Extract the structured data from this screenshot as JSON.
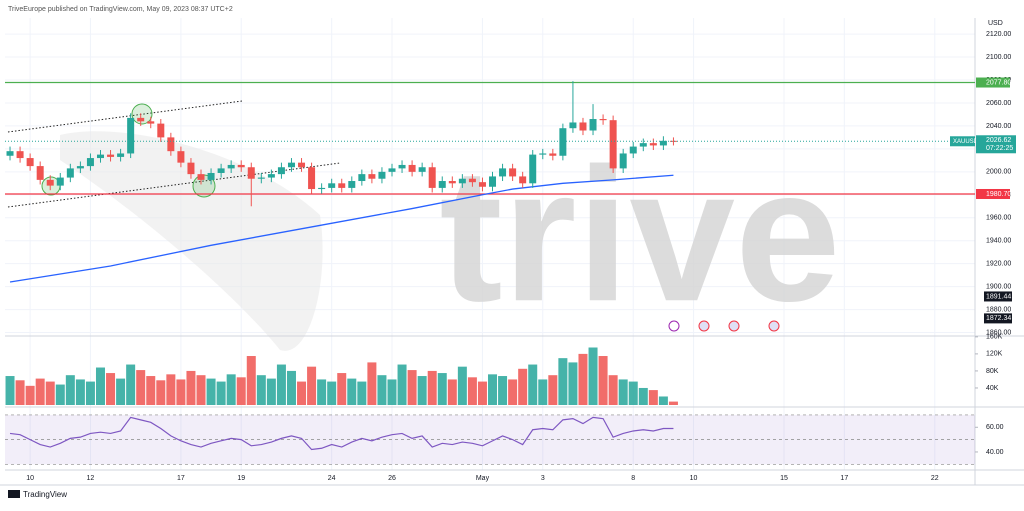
{
  "header": "TriveEurope published on TradingView.com, May 09, 2023 08:37 UTC+2",
  "footer": "TradingView",
  "watermark": "trive",
  "chart_data": {
    "type": "candlestick",
    "currency": "USD",
    "xlim": [
      -0.5,
      96
    ],
    "xticks": [
      {
        "value": 2,
        "label": "10"
      },
      {
        "value": 8,
        "label": "12"
      },
      {
        "value": 17,
        "label": "17"
      },
      {
        "value": 23,
        "label": "19"
      },
      {
        "value": 32,
        "label": "24"
      },
      {
        "value": 38,
        "label": "26"
      },
      {
        "value": 47,
        "label": "May"
      },
      {
        "value": 53,
        "label": "3"
      },
      {
        "value": 62,
        "label": "8"
      },
      {
        "value": 68,
        "label": "10"
      },
      {
        "value": 77,
        "label": "15"
      },
      {
        "value": 83,
        "label": "17"
      },
      {
        "value": 92,
        "label": "22"
      }
    ],
    "up_color": "#26a69a",
    "down_color": "#ef5350",
    "open": [
      2014,
      2018,
      2012,
      2005,
      1993,
      1988,
      1995,
      2003,
      2005,
      2012,
      2015,
      2013,
      2016,
      2047,
      2044,
      2042,
      2030,
      2018,
      2008,
      1998,
      1993,
      1999,
      2003,
      2006,
      2004,
      1994,
      1995,
      1998,
      2004,
      2008,
      2004,
      1985,
      1986,
      1990,
      1986,
      1992,
      1998,
      1994,
      2000,
      2003,
      2006,
      2000,
      2004,
      1986,
      1992,
      1990,
      1994,
      1991,
      1987,
      1996,
      2003,
      1996,
      1990,
      2015,
      2016,
      2014,
      2038,
      2043,
      2036,
      2046,
      2045,
      2003,
      2016,
      2022,
      2025,
      2023,
      2027
    ],
    "high": [
      2022,
      2022,
      2016,
      2009,
      1997,
      1999,
      2007,
      2009,
      2016,
      2019,
      2019,
      2020,
      2051,
      2051,
      2048,
      2046,
      2034,
      2022,
      2012,
      2002,
      2003,
      2007,
      2010,
      2010,
      2008,
      1999,
      2002,
      2008,
      2012,
      2012,
      2008,
      1990,
      1994,
      1994,
      1996,
      2002,
      2002,
      2004,
      2007,
      2010,
      2010,
      2008,
      2008,
      1996,
      1996,
      1998,
      1998,
      1995,
      2000,
      2007,
      2007,
      2000,
      2019,
      2020,
      2020,
      2042,
      2079,
      2047,
      2059,
      2050,
      2049,
      2020,
      2026,
      2029,
      2029,
      2031,
      2030
    ],
    "low": [
      2010,
      2008,
      2001,
      1989,
      1984,
      1984,
      1991,
      1999,
      2001,
      2008,
      2009,
      2009,
      2012,
      2040,
      2038,
      2026,
      2014,
      2004,
      1994,
      1989,
      1989,
      1995,
      1999,
      2000,
      1970,
      1990,
      1991,
      1994,
      2000,
      2000,
      1981,
      1981,
      1982,
      1982,
      1982,
      1988,
      1990,
      1990,
      1996,
      1999,
      1996,
      1996,
      1982,
      1982,
      1986,
      1986,
      1987,
      1983,
      1983,
      1992,
      1992,
      1986,
      1986,
      2011,
      2010,
      2010,
      2034,
      2032,
      2032,
      2041,
      1999,
      1999,
      2012,
      2018,
      2019,
      2019,
      2023
    ],
    "close": [
      2018,
      2012,
      2005,
      1993,
      1988,
      1995,
      2003,
      2005,
      2012,
      2015,
      2013,
      2016,
      2047,
      2044,
      2042,
      2030,
      2018,
      2008,
      1998,
      1993,
      1999,
      2003,
      2006,
      2004,
      1994,
      1995,
      1998,
      2004,
      2008,
      2004,
      1985,
      1986,
      1990,
      1986,
      1992,
      1998,
      1994,
      2000,
      2003,
      2006,
      2000,
      2004,
      1986,
      1992,
      1990,
      1994,
      1991,
      1987,
      1996,
      2003,
      1996,
      1990,
      2015,
      2016,
      2014,
      2038,
      2043,
      2036,
      2046,
      2045,
      2003,
      2016,
      2022,
      2025,
      2023,
      2027,
      2026.62
    ],
    "ylim": [
      1857,
      2134
    ],
    "yticks": [
      {
        "value": 1860,
        "label": "1860.00"
      },
      {
        "value": 1880,
        "label": "1880.00"
      },
      {
        "value": 1900,
        "label": "1900.00"
      },
      {
        "value": 1920,
        "label": "1920.00"
      },
      {
        "value": 1940,
        "label": "1940.00"
      },
      {
        "value": 1960,
        "label": "1960.00"
      },
      {
        "value": 1980,
        "label": "1980.00"
      },
      {
        "value": 2000,
        "label": "2000.00"
      },
      {
        "value": 2020,
        "label": "2020.00"
      },
      {
        "value": 2040,
        "label": "2040.00"
      },
      {
        "value": 2060,
        "label": "2060.00"
      },
      {
        "value": 2080,
        "label": "2080.00"
      },
      {
        "value": 2100,
        "label": "2100.00"
      },
      {
        "value": 2120,
        "label": "2120.00"
      }
    ],
    "grid": true,
    "ma": {
      "color": "#2962ff",
      "x": [
        0,
        10,
        20,
        30,
        40,
        47,
        50,
        55,
        60,
        66
      ],
      "values": [
        1904,
        1918,
        1936,
        1952,
        1968,
        1980,
        1985,
        1990,
        1993,
        1997
      ]
    },
    "hlines": [
      {
        "value": 2077.8,
        "label": "2077.80",
        "color": "#4caf50"
      },
      {
        "value": 1980.7,
        "label": "1980.70",
        "color": "#f23645"
      }
    ],
    "last": {
      "symbol": "XAUUSD",
      "value": 2026.62,
      "label": "2026.62",
      "countdown": "07:22:25",
      "color": "#26a69a"
    },
    "price_labels": [
      {
        "value": 1891.44,
        "label": "1891.44"
      },
      {
        "value": 1872.34,
        "label": "1872.34"
      }
    ],
    "volume": {
      "values": [
        68000,
        58000,
        45000,
        62000,
        55000,
        48000,
        70000,
        60000,
        55000,
        88000,
        75000,
        62000,
        95000,
        82000,
        68000,
        58000,
        72000,
        60000,
        80000,
        70000,
        62000,
        55000,
        72000,
        65000,
        115000,
        70000,
        62000,
        95000,
        80000,
        55000,
        90000,
        60000,
        55000,
        75000,
        62000,
        55000,
        100000,
        70000,
        60000,
        95000,
        82000,
        68000,
        80000,
        75000,
        60000,
        90000,
        65000,
        55000,
        72000,
        68000,
        60000,
        85000,
        95000,
        60000,
        70000,
        110000,
        100000,
        120000,
        135000,
        115000,
        70000,
        60000,
        55000,
        40000,
        35000,
        20000,
        8000
      ],
      "ylim": [
        0,
        162000
      ],
      "yticks": [
        {
          "value": 40000,
          "label": "40K"
        },
        {
          "value": 80000,
          "label": "80K"
        },
        {
          "value": 120000,
          "label": "120K"
        },
        {
          "value": 160000,
          "label": "160K"
        }
      ]
    },
    "rsi": {
      "values": [
        55,
        54,
        50,
        46,
        44,
        47,
        51,
        52,
        55,
        56,
        55,
        57,
        68,
        66,
        64,
        59,
        53,
        49,
        46,
        44,
        47,
        49,
        51,
        50,
        45,
        46,
        48,
        51,
        53,
        51,
        42,
        43,
        46,
        44,
        48,
        51,
        49,
        52,
        54,
        55,
        51,
        53,
        44,
        47,
        46,
        48,
        47,
        45,
        49,
        53,
        50,
        46,
        58,
        59,
        58,
        66,
        67,
        63,
        68,
        67,
        52,
        55,
        57,
        58,
        57,
        59,
        59
      ],
      "color": "#7e57c2",
      "ylim": [
        27,
        74
      ],
      "yticks": [
        {
          "value": 40,
          "label": "40.00"
        },
        {
          "value": 60,
          "label": "60.00"
        }
      ],
      "bands": [
        30,
        50,
        70
      ]
    }
  }
}
